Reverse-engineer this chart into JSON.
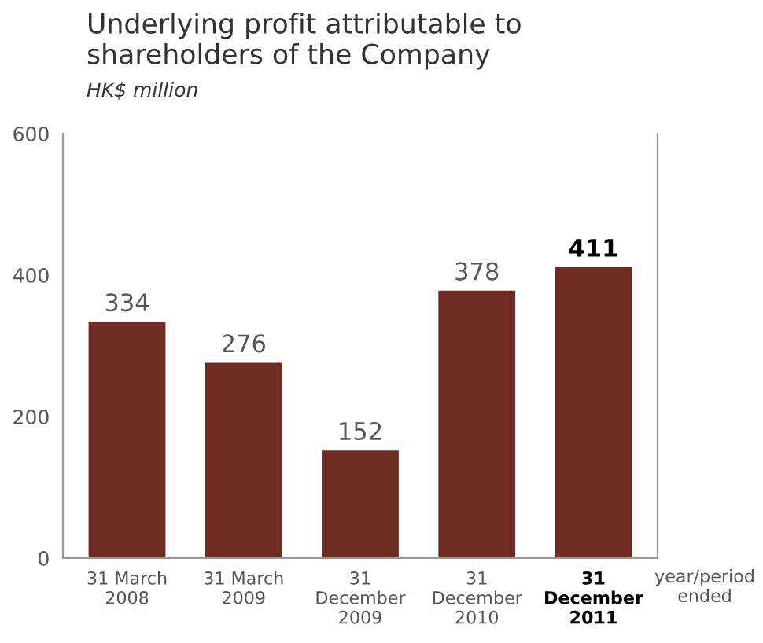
{
  "chart_data": {
    "type": "bar",
    "title": "Underlying profit attributable to\nshareholders of the Company",
    "ylabel": "HK$ million",
    "xlabel": "year/period\nended",
    "categories": [
      "31 March\n2008",
      "31 March\n2009",
      "31\nDecember\n2009",
      "31\nDecember\n2010",
      "31\nDecember\n2011"
    ],
    "values": [
      334,
      276,
      152,
      378,
      411
    ],
    "color": "#6e2c22",
    "data_labels": true,
    "ylim": [
      0,
      600
    ],
    "yticks": [
      0,
      200,
      400,
      600
    ],
    "grid": false
  }
}
